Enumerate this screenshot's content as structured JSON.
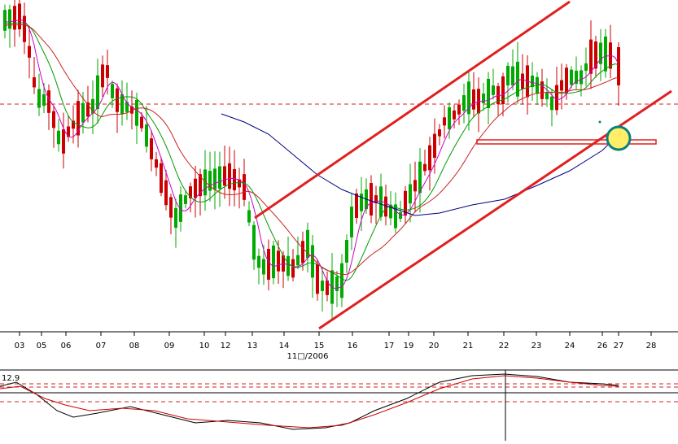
{
  "chart_data": [
    {
      "type": "candlestick",
      "x_ticks": [
        "03",
        "05",
        "06",
        "07",
        "08",
        "09",
        "10",
        "12",
        "13",
        "14",
        "15",
        "16",
        "17",
        "19",
        "20",
        "21",
        "22",
        "23",
        "24",
        "26",
        "27",
        "28"
      ],
      "x_caption": "11□/2006",
      "colors": {
        "bull": "#00aa00",
        "bear": "#cc0000",
        "trendline": "#e0201f",
        "ma_fast": "#cc00cc",
        "ma_medium": "#009900",
        "ma_slow": "#cc2222",
        "ma_long": "#000080",
        "hline_dashed": "#d42020",
        "highlight_circle": "#0a7f80",
        "highlight_fill": "#ffee66"
      },
      "annotations": [
        "upper channel line",
        "lower channel line",
        "horizontal dashed support",
        "highlight circle at 27"
      ]
    },
    {
      "type": "line",
      "label": "12.9",
      "series_colors": [
        "#000000",
        "#cc0000"
      ],
      "reference_lines": [
        "dashed upper",
        "solid mid",
        "dashed lower"
      ]
    }
  ]
}
